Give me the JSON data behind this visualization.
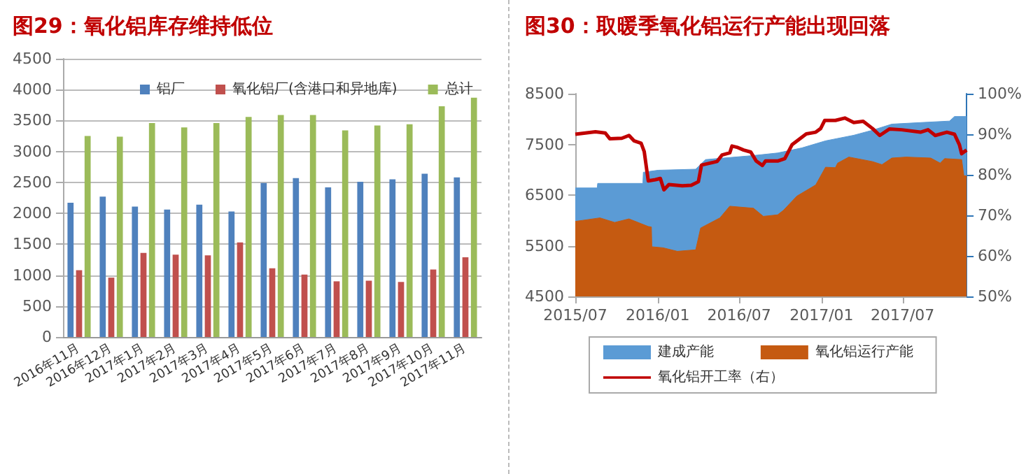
{
  "chart_data": [
    {
      "type": "bar",
      "title": "图29：氧化铝库存维持低位",
      "categories": [
        "2016年11月",
        "2016年12月",
        "2017年1月",
        "2017年2月",
        "2017年3月",
        "2017年4月",
        "2017年5月",
        "2017年6月",
        "2017年7月",
        "2017年8月",
        "2017年9月",
        "2017年10月",
        "2017年11月"
      ],
      "series": [
        {
          "name": "铝厂",
          "color": "#4f81bd",
          "values": [
            2170,
            2270,
            2110,
            2060,
            2140,
            2030,
            2490,
            2570,
            2420,
            2510,
            2550,
            2640,
            2580
          ]
        },
        {
          "name": "氧化铝厂(含港口和异地库)",
          "color": "#c0504d",
          "values": [
            1080,
            960,
            1360,
            1330,
            1320,
            1530,
            1110,
            1010,
            900,
            910,
            890,
            1090,
            1290
          ]
        },
        {
          "name": "总计",
          "color": "#9bbb59",
          "values": [
            3250,
            3240,
            3460,
            3390,
            3460,
            3560,
            3590,
            3590,
            3340,
            3420,
            3440,
            3730,
            3870
          ]
        }
      ],
      "ylim": [
        0,
        4500
      ],
      "yticks": [
        0,
        500,
        1000,
        1500,
        2000,
        2500,
        3000,
        3500,
        4000,
        4500
      ],
      "grid": "y",
      "legend": "top"
    },
    {
      "type": "area",
      "title": "图30：取暖季氧化铝运行产能出现回落",
      "series": [
        {
          "name": "建成产能",
          "color": "#5b9bd5",
          "x": [
            "2015-07-01",
            "2015-08-19",
            "2015-08-20",
            "2015-11-29",
            "2015-11-30",
            "2016-01-02",
            "2016-03-26",
            "2016-04-17",
            "2016-08-02",
            "2016-09-25",
            "2016-11-18",
            "2017-01-10",
            "2017-03-14",
            "2017-04-25",
            "2017-06-07",
            "2017-08-10",
            "2017-10-14",
            "2017-10-25",
            "2017-11-21"
          ],
          "values": [
            6640,
            6640,
            6730,
            6730,
            6950,
            6990,
            7010,
            7200,
            7280,
            7330,
            7430,
            7570,
            7680,
            7780,
            7900,
            7930,
            7960,
            8050,
            8050
          ]
        },
        {
          "name": "氧化铝运行产能",
          "color": "#c55a11",
          "x": [
            "2015-07-01",
            "2015-08-25",
            "2015-09-27",
            "2015-10-29",
            "2015-12-11",
            "2015-12-18",
            "2015-12-19",
            "2016-01-13",
            "2016-02-14",
            "2016-03-26",
            "2016-04-06",
            "2016-05-19",
            "2016-06-10",
            "2016-08-02",
            "2016-08-24",
            "2016-09-25",
            "2016-10-08",
            "2016-11-07",
            "2016-12-19",
            "2017-01-10",
            "2017-02-01",
            "2017-02-06",
            "2017-03-03",
            "2017-04-25",
            "2017-05-16",
            "2017-06-07",
            "2017-07-09",
            "2017-09-02",
            "2017-09-23",
            "2017-10-03",
            "2017-11-10",
            "2017-11-15",
            "2017-11-21"
          ],
          "values": [
            5980,
            6050,
            5960,
            6030,
            5880,
            5870,
            5480,
            5460,
            5390,
            5420,
            5850,
            6050,
            6280,
            6240,
            6080,
            6110,
            6200,
            6480,
            6700,
            7050,
            7040,
            7130,
            7250,
            7160,
            7100,
            7230,
            7250,
            7230,
            7130,
            7220,
            7200,
            6880,
            6880
          ]
        },
        {
          "name": "氧化铝开工率（右）",
          "type": "line",
          "axis": "y2",
          "color": "#c00000",
          "x": [
            "2015-07-01",
            "2015-08-15",
            "2015-09-06",
            "2015-09-16",
            "2015-10-13",
            "2015-10-29",
            "2015-11-09",
            "2015-11-25",
            "2015-12-02",
            "2015-12-11",
            "2015-12-27",
            "2016-01-07",
            "2016-01-15",
            "2016-01-26",
            "2016-02-25",
            "2016-03-16",
            "2016-04-01",
            "2016-04-08",
            "2016-04-28",
            "2016-05-13",
            "2016-05-24",
            "2016-06-10",
            "2016-06-15",
            "2016-06-26",
            "2016-07-11",
            "2016-07-27",
            "2016-08-08",
            "2016-08-22",
            "2016-08-29",
            "2016-09-25",
            "2016-10-11",
            "2016-10-27",
            "2016-11-28",
            "2016-12-19",
            "2016-12-30",
            "2017-01-08",
            "2017-02-01",
            "2017-02-22",
            "2017-03-14",
            "2017-04-04",
            "2017-04-25",
            "2017-05-11",
            "2017-06-02",
            "2017-06-29",
            "2017-08-10",
            "2017-08-27",
            "2017-09-12",
            "2017-10-08",
            "2017-10-25",
            "2017-11-05",
            "2017-11-10",
            "2017-11-21"
          ],
          "values": [
            90.0,
            90.6,
            90.3,
            88.9,
            89.0,
            89.7,
            88.4,
            87.8,
            85.7,
            78.5,
            78.8,
            79.1,
            76.3,
            77.6,
            77.3,
            77.4,
            78.3,
            82.4,
            82.9,
            83.3,
            84.9,
            85.4,
            87.1,
            86.8,
            86.1,
            85.6,
            83.4,
            82.3,
            83.4,
            83.4,
            84.0,
            87.4,
            90.1,
            90.5,
            91.4,
            93.4,
            93.4,
            94.0,
            92.9,
            93.2,
            91.4,
            89.7,
            91.3,
            91.1,
            90.5,
            91.1,
            89.7,
            90.5,
            90.0,
            87.4,
            85.2,
            86.1
          ]
        }
      ],
      "xlim": [
        "2015-07-01",
        "2017-11-21"
      ],
      "xticks": [
        {
          "value": "2015-07",
          "label": "2015/07"
        },
        {
          "value": "2016-01",
          "label": "2016/01"
        },
        {
          "value": "2016-07",
          "label": "2016/07"
        },
        {
          "value": "2017-01",
          "label": "2017/01"
        },
        {
          "value": "2017-07",
          "label": "2017/07"
        }
      ],
      "ylim": [
        4500,
        8500
      ],
      "yticks": [
        4500,
        5500,
        6500,
        7500,
        8500
      ],
      "y2lim": [
        50,
        100
      ],
      "y2ticks": [
        {
          "value": 50,
          "label": "50%"
        },
        {
          "value": 60,
          "label": "60%"
        },
        {
          "value": 70,
          "label": "70%"
        },
        {
          "value": 80,
          "label": "80%"
        },
        {
          "value": 90,
          "label": "90%"
        },
        {
          "value": 100,
          "label": "100%"
        }
      ],
      "legend": "bottom"
    }
  ]
}
